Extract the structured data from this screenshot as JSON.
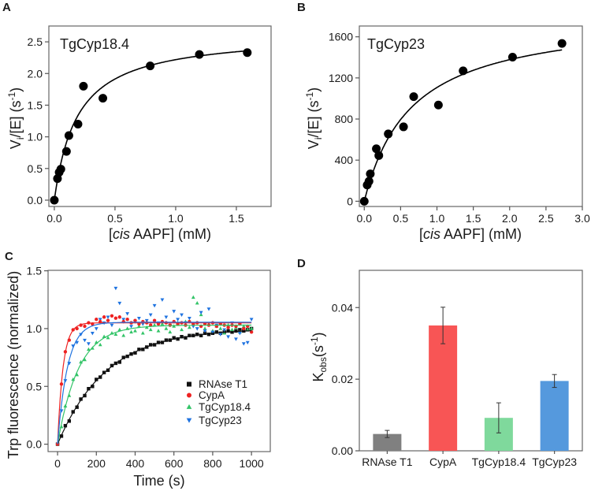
{
  "chart_data": [
    {
      "panel": "A",
      "type": "scatter",
      "title": "TgCyp18.4",
      "xlabel": {
        "pre": "[",
        "italic": "cis",
        "post": " AAPF] (mM)"
      },
      "ylabel": {
        "main": "V",
        "sub": "i",
        "mid": "/[E] (s",
        "sup": "-1",
        "end": ")"
      },
      "xlim": [
        -0.045,
        1.786
      ],
      "ylim": [
        -0.1,
        2.75
      ],
      "xticks": [
        0,
        0.5,
        1.0,
        1.5
      ],
      "xtick_labels": [
        "0.0",
        "0.5",
        "1.0",
        "1.5"
      ],
      "yticks": [
        0,
        0.5,
        1.0,
        1.5,
        2.0,
        2.5
      ],
      "ytick_labels": [
        "0.0",
        "0.5",
        "1.0",
        "1.5",
        "2.0",
        "2.5"
      ],
      "points": {
        "x": [
          0,
          0.026,
          0.04,
          0.054,
          0.1,
          0.12,
          0.195,
          0.24,
          0.4,
          0.79,
          1.195,
          1.59
        ],
        "y": [
          0,
          0.34,
          0.44,
          0.49,
          0.77,
          1.02,
          1.2,
          1.8,
          1.61,
          2.12,
          2.3,
          2.33
        ]
      },
      "fit": {
        "model": "michaelis-menten",
        "vmax": 2.64,
        "km": 0.19,
        "x_range": [
          0,
          1.6
        ]
      },
      "color": "#000000"
    },
    {
      "panel": "B",
      "type": "scatter",
      "title": "TgCyp23",
      "xlabel": {
        "pre": "[",
        "italic": "cis",
        "post": " AAPF] (mM)"
      },
      "ylabel": {
        "main": "V",
        "sub": "i",
        "mid": "/[E] (s",
        "sup": "-1",
        "end": ")"
      },
      "xlim": [
        -0.068,
        3.0
      ],
      "ylim": [
        -51,
        1705
      ],
      "xticks": [
        0,
        0.5,
        1.0,
        1.5,
        2.0,
        2.5,
        3.0
      ],
      "xtick_labels": [
        "0.0",
        "0.5",
        "1.0",
        "1.5",
        "2.0",
        "2.5",
        "3.0"
      ],
      "yticks": [
        0,
        400,
        800,
        1200,
        1600
      ],
      "ytick_labels": [
        "0",
        "400",
        "800",
        "1200",
        "1600"
      ],
      "points": {
        "x": [
          0,
          0.04,
          0.065,
          0.083,
          0.166,
          0.2,
          0.33,
          0.54,
          0.68,
          1.02,
          1.36,
          2.04,
          2.72
        ],
        "y": [
          0,
          158,
          194,
          266,
          511,
          445,
          655,
          724,
          1018,
          936,
          1269,
          1402,
          1535
        ]
      },
      "fit": {
        "model": "michaelis-menten",
        "vmax": 1823,
        "km": 0.647,
        "x_range": [
          0,
          2.72
        ]
      },
      "color": "#000000"
    },
    {
      "panel": "C",
      "type": "scatter",
      "xlabel": "Time (s)",
      "ylabel": "Trp fluorescence (normalized)",
      "xlim": [
        -49,
        1097
      ],
      "ylim": [
        -0.064,
        1.504
      ],
      "xticks": [
        0,
        200,
        400,
        600,
        800,
        1000
      ],
      "xtick_labels": [
        "0",
        "200",
        "400",
        "600",
        "800",
        "1000"
      ],
      "yticks": [
        0,
        0.5,
        1.0,
        1.5
      ],
      "ytick_labels": [
        "0.0",
        "0.5",
        "1.0",
        "1.5"
      ],
      "legend_position": "bottom-right",
      "time": [
        0,
        20,
        40,
        60,
        80,
        100,
        120,
        140,
        160,
        180,
        200,
        220,
        240,
        260,
        280,
        300,
        320,
        340,
        360,
        380,
        400,
        420,
        440,
        460,
        480,
        500,
        520,
        540,
        560,
        580,
        600,
        620,
        640,
        660,
        680,
        700,
        720,
        740,
        760,
        780,
        800,
        820,
        840,
        860,
        880,
        900,
        920,
        940,
        960,
        980,
        1000
      ],
      "series": [
        {
          "name": "RNAse T1",
          "marker": "square",
          "color": "#111111",
          "fit": {
            "plateau": 1.0,
            "k": 0.004
          },
          "values": [
            0,
            0.07,
            0.16,
            0.2,
            0.28,
            0.32,
            0.39,
            0.42,
            0.48,
            0.5,
            0.56,
            0.58,
            0.62,
            0.64,
            0.68,
            0.7,
            0.71,
            0.75,
            0.76,
            0.78,
            0.79,
            0.82,
            0.82,
            0.84,
            0.86,
            0.86,
            0.88,
            0.88,
            0.9,
            0.9,
            0.92,
            0.91,
            0.93,
            0.92,
            0.94,
            0.94,
            0.95,
            0.94,
            0.96,
            0.95,
            0.96,
            0.97,
            0.96,
            0.97,
            0.98,
            0.97,
            0.98,
            0.99,
            0.98,
            0.99,
            1.0
          ]
        },
        {
          "name": "CypA",
          "marker": "circle",
          "color": "#ee2222",
          "fit": {
            "plateau": 1.05,
            "k": 0.035
          },
          "values": [
            0,
            0.52,
            0.8,
            0.9,
            0.99,
            1.0,
            1.03,
            1.02,
            1.05,
            1.04,
            1.08,
            1.06,
            1.1,
            1.07,
            1.11,
            1.09,
            1.1,
            1.06,
            1.08,
            1.05,
            1.07,
            1.04,
            1.06,
            1.05,
            1.03,
            1.07,
            1.04,
            1.06,
            1.05,
            1.03,
            1.06,
            1.04,
            1.05,
            1.03,
            1.06,
            1.04,
            1.05,
            1.02,
            1.04,
            1.03,
            1.05,
            1.02,
            1.04,
            1.03,
            1.01,
            1.03,
            1.02,
            1.04,
            1.0,
            1.02,
            0.97
          ]
        },
        {
          "name": "TgCyp18.4",
          "marker": "triangle-up",
          "color": "#33c468",
          "fit": {
            "plateau": 1.03,
            "k": 0.0093
          },
          "values": [
            0,
            0.15,
            0.33,
            0.42,
            0.56,
            0.6,
            0.71,
            0.73,
            0.82,
            0.83,
            0.88,
            0.86,
            0.93,
            0.92,
            0.96,
            0.95,
            0.99,
            0.94,
            1.0,
            0.97,
            0.98,
            1.02,
            0.96,
            1.01,
            0.99,
            1.03,
            0.98,
            1.04,
            1.0,
            0.97,
            1.02,
            1.05,
            0.99,
            1.06,
            1.01,
            1.27,
            1.22,
            1.12,
            1.0,
            1.04,
            0.98,
            1.02,
            1.0,
            0.96,
            1.03,
            0.99,
            1.01,
            0.97,
            1.02,
            0.99,
            1.0
          ]
        },
        {
          "name": "TgCyp23",
          "marker": "triangle-down",
          "color": "#1f73e0",
          "fit": {
            "plateau": 1.055,
            "k": 0.0195
          },
          "values": [
            0,
            0.29,
            0.55,
            0.7,
            0.85,
            0.88,
            0.95,
            0.9,
            0.87,
            0.96,
            1.0,
            1.08,
            1.05,
            1.1,
            1.03,
            1.35,
            1.22,
            1.08,
            1.13,
            1.02,
            1.06,
            1.09,
            1.04,
            1.07,
            1.12,
            1.2,
            1.05,
            1.25,
            1.1,
            1.03,
            1.15,
            1.08,
            1.12,
            1.05,
            1.09,
            1.02,
            1.0,
            1.14,
            0.98,
            1.17,
            0.97,
            1.03,
            0.95,
            0.99,
            0.93,
            1.05,
            0.91,
            0.96,
            0.87,
            0.88,
            1.08
          ]
        }
      ]
    },
    {
      "panel": "D",
      "type": "bar",
      "ylabel": {
        "main": "K",
        "sub": "obs",
        "mid": "(s",
        "sup": "-1",
        "end": ")"
      },
      "ylim": [
        0,
        0.0504
      ],
      "yticks": [
        0,
        0.02,
        0.04
      ],
      "ytick_labels": [
        "0.00",
        "0.02",
        "0.04"
      ],
      "categories": [
        "RNAse T1",
        "CypA",
        "TgCyp18.4",
        "TgCyp23"
      ],
      "values": [
        0.0047,
        0.035,
        0.0092,
        0.0195
      ],
      "errors": [
        0.001,
        0.0051,
        0.0042,
        0.0018
      ],
      "colors": [
        "#808080",
        "#f85555",
        "#7fd99c",
        "#5599dd"
      ]
    }
  ],
  "panel_labels": [
    "A",
    "B",
    "C",
    "D"
  ]
}
